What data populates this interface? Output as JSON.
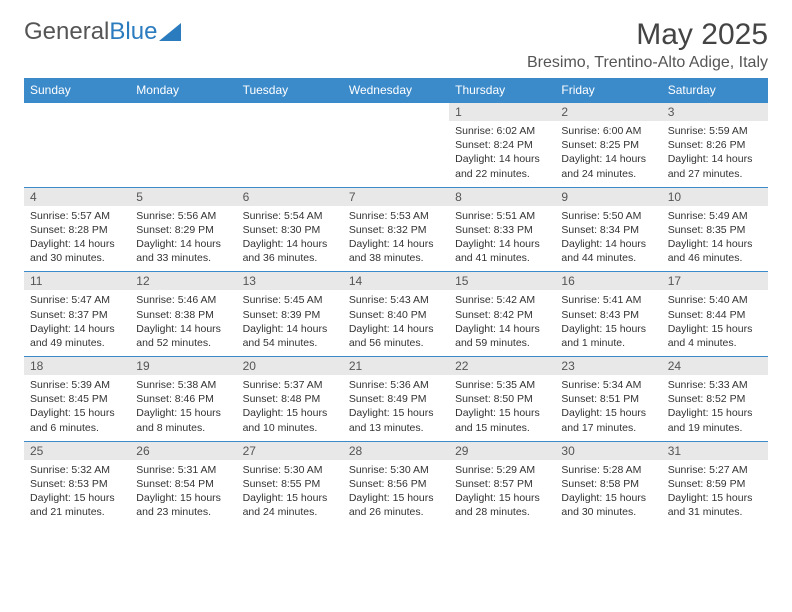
{
  "logo": {
    "textA": "General",
    "textB": "Blue"
  },
  "title": "May 2025",
  "subtitle": "Bresimo, Trentino-Alto Adige, Italy",
  "colors": {
    "header_bg": "#3b8aca",
    "header_fg": "#ffffff",
    "daynum_bg": "#e8e8e8",
    "rule": "#3b8aca",
    "text": "#333333"
  },
  "weekdays": [
    "Sunday",
    "Monday",
    "Tuesday",
    "Wednesday",
    "Thursday",
    "Friday",
    "Saturday"
  ],
  "weeks": [
    [
      null,
      null,
      null,
      null,
      {
        "n": "1",
        "sr": "Sunrise: 6:02 AM",
        "ss": "Sunset: 8:24 PM",
        "d1": "Daylight: 14 hours",
        "d2": "and 22 minutes."
      },
      {
        "n": "2",
        "sr": "Sunrise: 6:00 AM",
        "ss": "Sunset: 8:25 PM",
        "d1": "Daylight: 14 hours",
        "d2": "and 24 minutes."
      },
      {
        "n": "3",
        "sr": "Sunrise: 5:59 AM",
        "ss": "Sunset: 8:26 PM",
        "d1": "Daylight: 14 hours",
        "d2": "and 27 minutes."
      }
    ],
    [
      {
        "n": "4",
        "sr": "Sunrise: 5:57 AM",
        "ss": "Sunset: 8:28 PM",
        "d1": "Daylight: 14 hours",
        "d2": "and 30 minutes."
      },
      {
        "n": "5",
        "sr": "Sunrise: 5:56 AM",
        "ss": "Sunset: 8:29 PM",
        "d1": "Daylight: 14 hours",
        "d2": "and 33 minutes."
      },
      {
        "n": "6",
        "sr": "Sunrise: 5:54 AM",
        "ss": "Sunset: 8:30 PM",
        "d1": "Daylight: 14 hours",
        "d2": "and 36 minutes."
      },
      {
        "n": "7",
        "sr": "Sunrise: 5:53 AM",
        "ss": "Sunset: 8:32 PM",
        "d1": "Daylight: 14 hours",
        "d2": "and 38 minutes."
      },
      {
        "n": "8",
        "sr": "Sunrise: 5:51 AM",
        "ss": "Sunset: 8:33 PM",
        "d1": "Daylight: 14 hours",
        "d2": "and 41 minutes."
      },
      {
        "n": "9",
        "sr": "Sunrise: 5:50 AM",
        "ss": "Sunset: 8:34 PM",
        "d1": "Daylight: 14 hours",
        "d2": "and 44 minutes."
      },
      {
        "n": "10",
        "sr": "Sunrise: 5:49 AM",
        "ss": "Sunset: 8:35 PM",
        "d1": "Daylight: 14 hours",
        "d2": "and 46 minutes."
      }
    ],
    [
      {
        "n": "11",
        "sr": "Sunrise: 5:47 AM",
        "ss": "Sunset: 8:37 PM",
        "d1": "Daylight: 14 hours",
        "d2": "and 49 minutes."
      },
      {
        "n": "12",
        "sr": "Sunrise: 5:46 AM",
        "ss": "Sunset: 8:38 PM",
        "d1": "Daylight: 14 hours",
        "d2": "and 52 minutes."
      },
      {
        "n": "13",
        "sr": "Sunrise: 5:45 AM",
        "ss": "Sunset: 8:39 PM",
        "d1": "Daylight: 14 hours",
        "d2": "and 54 minutes."
      },
      {
        "n": "14",
        "sr": "Sunrise: 5:43 AM",
        "ss": "Sunset: 8:40 PM",
        "d1": "Daylight: 14 hours",
        "d2": "and 56 minutes."
      },
      {
        "n": "15",
        "sr": "Sunrise: 5:42 AM",
        "ss": "Sunset: 8:42 PM",
        "d1": "Daylight: 14 hours",
        "d2": "and 59 minutes."
      },
      {
        "n": "16",
        "sr": "Sunrise: 5:41 AM",
        "ss": "Sunset: 8:43 PM",
        "d1": "Daylight: 15 hours",
        "d2": "and 1 minute."
      },
      {
        "n": "17",
        "sr": "Sunrise: 5:40 AM",
        "ss": "Sunset: 8:44 PM",
        "d1": "Daylight: 15 hours",
        "d2": "and 4 minutes."
      }
    ],
    [
      {
        "n": "18",
        "sr": "Sunrise: 5:39 AM",
        "ss": "Sunset: 8:45 PM",
        "d1": "Daylight: 15 hours",
        "d2": "and 6 minutes."
      },
      {
        "n": "19",
        "sr": "Sunrise: 5:38 AM",
        "ss": "Sunset: 8:46 PM",
        "d1": "Daylight: 15 hours",
        "d2": "and 8 minutes."
      },
      {
        "n": "20",
        "sr": "Sunrise: 5:37 AM",
        "ss": "Sunset: 8:48 PM",
        "d1": "Daylight: 15 hours",
        "d2": "and 10 minutes."
      },
      {
        "n": "21",
        "sr": "Sunrise: 5:36 AM",
        "ss": "Sunset: 8:49 PM",
        "d1": "Daylight: 15 hours",
        "d2": "and 13 minutes."
      },
      {
        "n": "22",
        "sr": "Sunrise: 5:35 AM",
        "ss": "Sunset: 8:50 PM",
        "d1": "Daylight: 15 hours",
        "d2": "and 15 minutes."
      },
      {
        "n": "23",
        "sr": "Sunrise: 5:34 AM",
        "ss": "Sunset: 8:51 PM",
        "d1": "Daylight: 15 hours",
        "d2": "and 17 minutes."
      },
      {
        "n": "24",
        "sr": "Sunrise: 5:33 AM",
        "ss": "Sunset: 8:52 PM",
        "d1": "Daylight: 15 hours",
        "d2": "and 19 minutes."
      }
    ],
    [
      {
        "n": "25",
        "sr": "Sunrise: 5:32 AM",
        "ss": "Sunset: 8:53 PM",
        "d1": "Daylight: 15 hours",
        "d2": "and 21 minutes."
      },
      {
        "n": "26",
        "sr": "Sunrise: 5:31 AM",
        "ss": "Sunset: 8:54 PM",
        "d1": "Daylight: 15 hours",
        "d2": "and 23 minutes."
      },
      {
        "n": "27",
        "sr": "Sunrise: 5:30 AM",
        "ss": "Sunset: 8:55 PM",
        "d1": "Daylight: 15 hours",
        "d2": "and 24 minutes."
      },
      {
        "n": "28",
        "sr": "Sunrise: 5:30 AM",
        "ss": "Sunset: 8:56 PM",
        "d1": "Daylight: 15 hours",
        "d2": "and 26 minutes."
      },
      {
        "n": "29",
        "sr": "Sunrise: 5:29 AM",
        "ss": "Sunset: 8:57 PM",
        "d1": "Daylight: 15 hours",
        "d2": "and 28 minutes."
      },
      {
        "n": "30",
        "sr": "Sunrise: 5:28 AM",
        "ss": "Sunset: 8:58 PM",
        "d1": "Daylight: 15 hours",
        "d2": "and 30 minutes."
      },
      {
        "n": "31",
        "sr": "Sunrise: 5:27 AM",
        "ss": "Sunset: 8:59 PM",
        "d1": "Daylight: 15 hours",
        "d2": "and 31 minutes."
      }
    ]
  ]
}
